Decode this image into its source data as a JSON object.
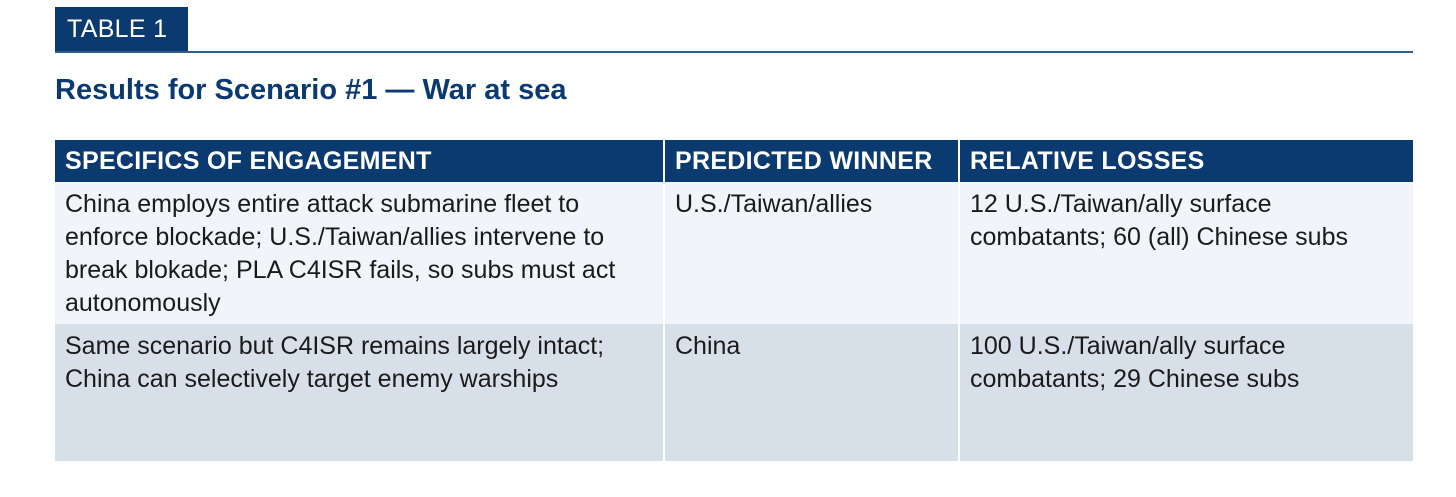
{
  "label": "TABLE 1",
  "title": "Results for Scenario #1 — War at sea",
  "colors": {
    "navy": "#0b3a70",
    "row_light": "#f1f4f8",
    "row_shaded": "#d7dfe9"
  },
  "table": {
    "headers": [
      "SPECIFICS OF ENGAGEMENT",
      "PREDICTED WINNER",
      "RELATIVE LOSSES"
    ],
    "rows": [
      {
        "specifics": "China employs entire attack submarine fleet to enforce blockade; U.S./Taiwan/allies intervene to break blokade; PLA C4ISR fails, so subs must act autonomously",
        "winner": "U.S./Taiwan/allies",
        "losses": "12 U.S./Taiwan/ally surface combatants; 60 (all) Chinese subs"
      },
      {
        "specifics": "Same scenario but C4ISR remains largely intact; China can selectively target enemy warships",
        "winner": "China",
        "losses": "100 U.S./Taiwan/ally surface combatants; 29 Chinese subs"
      }
    ]
  }
}
